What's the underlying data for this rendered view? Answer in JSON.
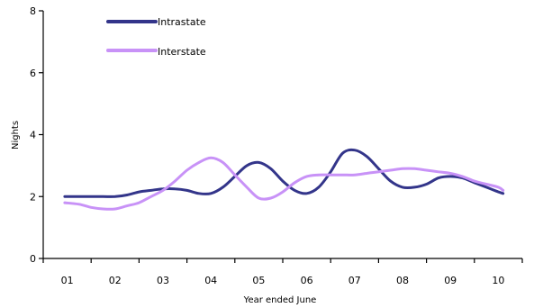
{
  "chart_data": {
    "type": "line",
    "title": "",
    "xlabel": "Year ended June",
    "ylabel": "Nights",
    "ylim": [
      0,
      8
    ],
    "xlim": [
      0.5,
      10.5
    ],
    "yticks": [
      "0",
      "2",
      "4",
      "6",
      "8"
    ],
    "xticks": [
      {
        "label": "01",
        "x": 1
      },
      {
        "label": "02",
        "x": 2
      },
      {
        "label": "03",
        "x": 3
      },
      {
        "label": "04",
        "x": 4
      },
      {
        "label": "05",
        "x": 5
      },
      {
        "label": "06",
        "x": 6
      },
      {
        "label": "07",
        "x": 7
      },
      {
        "label": "08",
        "x": 8
      },
      {
        "label": "09",
        "x": 9
      },
      {
        "label": "10",
        "x": 10
      }
    ],
    "legend": "top-left",
    "grid": false,
    "series": [
      {
        "name": "Intrastate",
        "color": "#33358a",
        "x": [
          0.95,
          1.25,
          1.5,
          1.75,
          2.0,
          2.25,
          2.5,
          2.75,
          3.0,
          3.25,
          3.5,
          3.75,
          4.0,
          4.25,
          4.5,
          4.75,
          5.0,
          5.25,
          5.5,
          5.75,
          6.0,
          6.25,
          6.5,
          6.75,
          7.0,
          7.25,
          7.5,
          7.75,
          8.0,
          8.25,
          8.5,
          8.75,
          9.0,
          9.25,
          9.5,
          9.75,
          10.0,
          10.1
        ],
        "y": [
          2.0,
          2.0,
          2.0,
          2.0,
          2.0,
          2.05,
          2.15,
          2.2,
          2.25,
          2.25,
          2.2,
          2.1,
          2.1,
          2.3,
          2.65,
          3.0,
          3.1,
          2.9,
          2.5,
          2.2,
          2.1,
          2.3,
          2.8,
          3.4,
          3.5,
          3.3,
          2.9,
          2.5,
          2.3,
          2.3,
          2.4,
          2.6,
          2.65,
          2.6,
          2.45,
          2.3,
          2.15,
          2.1
        ]
      },
      {
        "name": "Interstate",
        "color": "#c892f7",
        "x": [
          0.95,
          1.25,
          1.5,
          1.75,
          2.0,
          2.25,
          2.5,
          2.75,
          3.0,
          3.25,
          3.5,
          3.75,
          4.0,
          4.25,
          4.5,
          4.75,
          5.0,
          5.25,
          5.5,
          5.75,
          6.0,
          6.25,
          6.5,
          6.75,
          7.0,
          7.25,
          7.5,
          7.75,
          8.0,
          8.25,
          8.5,
          8.75,
          9.0,
          9.25,
          9.5,
          9.75,
          10.0,
          10.1
        ],
        "y": [
          1.8,
          1.75,
          1.65,
          1.6,
          1.6,
          1.7,
          1.8,
          2.0,
          2.2,
          2.5,
          2.85,
          3.1,
          3.25,
          3.1,
          2.7,
          2.3,
          1.95,
          1.95,
          2.15,
          2.45,
          2.65,
          2.7,
          2.7,
          2.7,
          2.7,
          2.75,
          2.8,
          2.85,
          2.9,
          2.9,
          2.85,
          2.8,
          2.75,
          2.65,
          2.5,
          2.4,
          2.3,
          2.2
        ]
      }
    ]
  }
}
